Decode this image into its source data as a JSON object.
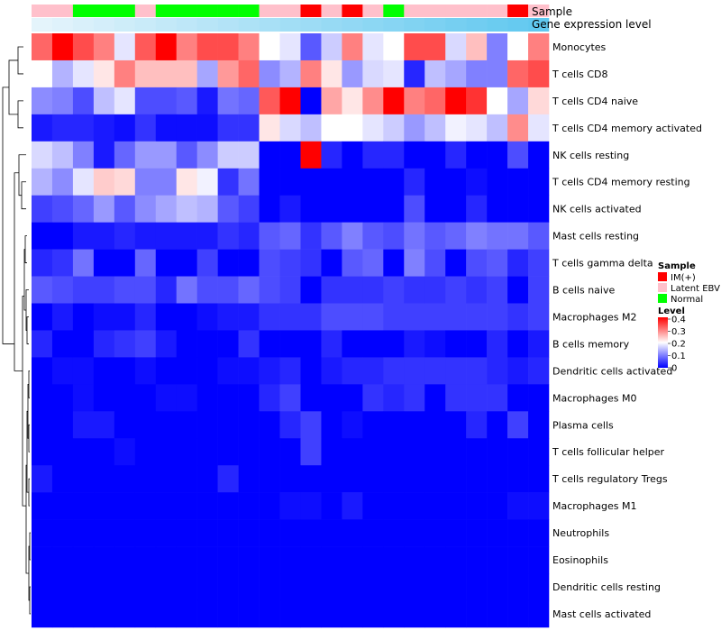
{
  "chart_data": {
    "type": "heatmap",
    "annotation_labels": {
      "sample": "Sample",
      "gene": "Gene expression level"
    },
    "sample_annotation": [
      "Latent EBV",
      "Latent EBV",
      "Normal",
      "Normal",
      "Normal",
      "Latent EBV",
      "Normal",
      "Normal",
      "Normal",
      "Normal",
      "Normal",
      "Latent EBV",
      "Latent EBV",
      "IM(+)",
      "Latent EBV",
      "IM(+)",
      "Latent EBV",
      "Normal",
      "Latent EBV",
      "Latent EBV",
      "Latent EBV",
      "Latent EBV",
      "Latent EBV",
      "IM(+)",
      "Latent EBV"
    ],
    "gene_expression_level": [
      0.0,
      0.04,
      0.08,
      0.12,
      0.16,
      0.2,
      0.24,
      0.28,
      0.32,
      0.36,
      0.4,
      0.44,
      0.48,
      0.52,
      0.56,
      0.6,
      0.64,
      0.68,
      0.72,
      0.76,
      0.8,
      0.84,
      0.88,
      0.92,
      0.96
    ],
    "gene_expression_colors": {
      "low": "#e4f4fb",
      "high": "#5bc6ef"
    },
    "rows": [
      {
        "label": "Monocytes",
        "values": [
          0.32,
          0.4,
          0.34,
          0.3,
          0.18,
          0.33,
          0.4,
          0.3,
          0.34,
          0.34,
          0.3,
          0.2,
          0.18,
          0.07,
          0.16,
          0.3,
          0.18,
          0.2,
          0.34,
          0.34,
          0.17,
          0.25,
          0.1,
          0.2,
          0.3
        ]
      },
      {
        "label": "T cells CD8",
        "values": [
          0.2,
          0.14,
          0.18,
          0.22,
          0.3,
          0.25,
          0.25,
          0.25,
          0.13,
          0.28,
          0.32,
          0.11,
          0.14,
          0.3,
          0.22,
          0.12,
          0.17,
          0.18,
          0.03,
          0.15,
          0.13,
          0.1,
          0.1,
          0.32,
          0.34
        ]
      },
      {
        "label": "T cells CD4 naive",
        "values": [
          0.11,
          0.1,
          0.06,
          0.15,
          0.18,
          0.06,
          0.06,
          0.07,
          0.02,
          0.09,
          0.08,
          0.33,
          0.4,
          0.0,
          0.27,
          0.22,
          0.29,
          0.4,
          0.3,
          0.32,
          0.4,
          0.36,
          0.2,
          0.13,
          0.23
        ]
      },
      {
        "label": "T cells CD4 memory activated",
        "values": [
          0.02,
          0.03,
          0.03,
          0.02,
          0.01,
          0.04,
          0.01,
          0.01,
          0.01,
          0.04,
          0.04,
          0.22,
          0.17,
          0.15,
          0.2,
          0.2,
          0.18,
          0.16,
          0.12,
          0.15,
          0.19,
          0.18,
          0.15,
          0.29,
          0.18
        ]
      },
      {
        "label": "NK cells resting",
        "values": [
          0.17,
          0.15,
          0.1,
          0.02,
          0.08,
          0.12,
          0.12,
          0.07,
          0.11,
          0.16,
          0.16,
          0.0,
          0.0,
          0.4,
          0.03,
          0.0,
          0.03,
          0.03,
          0.0,
          0.0,
          0.03,
          0.0,
          0.0,
          0.06,
          0.0
        ]
      },
      {
        "label": "T cells CD4 memory resting",
        "values": [
          0.14,
          0.11,
          0.18,
          0.24,
          0.23,
          0.1,
          0.1,
          0.22,
          0.19,
          0.04,
          0.09,
          0.0,
          0.0,
          0.0,
          0.0,
          0.0,
          0.0,
          0.0,
          0.03,
          0.0,
          0.0,
          0.01,
          0.0,
          0.0,
          0.0
        ]
      },
      {
        "label": "NK cells activated",
        "values": [
          0.05,
          0.06,
          0.08,
          0.12,
          0.07,
          0.11,
          0.13,
          0.15,
          0.14,
          0.07,
          0.05,
          0.0,
          0.02,
          0.0,
          0.0,
          0.0,
          0.0,
          0.0,
          0.06,
          0.0,
          0.0,
          0.03,
          0.0,
          0.0,
          0.0
        ]
      },
      {
        "label": "Mast cells resting",
        "values": [
          0.0,
          0.0,
          0.02,
          0.02,
          0.03,
          0.02,
          0.02,
          0.02,
          0.02,
          0.04,
          0.03,
          0.07,
          0.08,
          0.04,
          0.07,
          0.1,
          0.07,
          0.06,
          0.09,
          0.07,
          0.08,
          0.1,
          0.09,
          0.09,
          0.07
        ]
      },
      {
        "label": "T cells gamma delta",
        "values": [
          0.03,
          0.04,
          0.09,
          0.0,
          0.0,
          0.08,
          0.0,
          0.0,
          0.05,
          0.0,
          0.0,
          0.06,
          0.05,
          0.04,
          0.0,
          0.07,
          0.08,
          0.0,
          0.1,
          0.06,
          0.0,
          0.06,
          0.07,
          0.03,
          0.05
        ]
      },
      {
        "label": "B cells naive",
        "values": [
          0.07,
          0.06,
          0.05,
          0.05,
          0.06,
          0.06,
          0.03,
          0.09,
          0.06,
          0.06,
          0.08,
          0.06,
          0.05,
          0.0,
          0.04,
          0.04,
          0.04,
          0.05,
          0.04,
          0.04,
          0.05,
          0.04,
          0.05,
          0.0,
          0.05
        ]
      },
      {
        "label": "Macrophages M2",
        "values": [
          0.0,
          0.02,
          0.0,
          0.01,
          0.01,
          0.03,
          0.0,
          0.0,
          0.01,
          0.02,
          0.02,
          0.04,
          0.04,
          0.04,
          0.06,
          0.06,
          0.06,
          0.05,
          0.05,
          0.05,
          0.05,
          0.05,
          0.05,
          0.04,
          0.05
        ]
      },
      {
        "label": "B cells memory",
        "values": [
          0.03,
          0.0,
          0.0,
          0.03,
          0.04,
          0.05,
          0.02,
          0.0,
          0.0,
          0.0,
          0.04,
          0.0,
          0.0,
          0.0,
          0.03,
          0.0,
          0.0,
          0.0,
          0.02,
          0.01,
          0.0,
          0.0,
          0.03,
          0.0,
          0.02
        ]
      },
      {
        "label": "Dendritic cells activated",
        "values": [
          0.0,
          0.01,
          0.01,
          0.0,
          0.0,
          0.01,
          0.0,
          0.0,
          0.0,
          0.01,
          0.01,
          0.02,
          0.03,
          0.0,
          0.02,
          0.03,
          0.03,
          0.04,
          0.04,
          0.04,
          0.04,
          0.04,
          0.03,
          0.02,
          0.03
        ]
      },
      {
        "label": "Macrophages M0",
        "values": [
          0.0,
          0.0,
          0.01,
          0.0,
          0.0,
          0.0,
          0.01,
          0.01,
          0.0,
          0.0,
          0.0,
          0.03,
          0.05,
          0.0,
          0.0,
          0.0,
          0.04,
          0.03,
          0.04,
          0.0,
          0.04,
          0.04,
          0.04,
          0.0,
          0.0
        ]
      },
      {
        "label": "Plasma cells",
        "values": [
          0.0,
          0.0,
          0.02,
          0.02,
          0.0,
          0.0,
          0.0,
          0.0,
          0.0,
          0.0,
          0.0,
          0.0,
          0.03,
          0.05,
          0.0,
          0.01,
          0.0,
          0.0,
          0.0,
          0.0,
          0.0,
          0.03,
          0.0,
          0.05,
          0.0
        ]
      },
      {
        "label": "T cells follicular helper",
        "values": [
          0.0,
          0.0,
          0.0,
          0.0,
          0.01,
          0.0,
          0.0,
          0.0,
          0.0,
          0.0,
          0.0,
          0.0,
          0.0,
          0.05,
          0.0,
          0.0,
          0.0,
          0.0,
          0.0,
          0.0,
          0.0,
          0.0,
          0.0,
          0.0,
          0.0
        ]
      },
      {
        "label": "T cells regulatory  Tregs",
        "values": [
          0.02,
          0.0,
          0.0,
          0.0,
          0.0,
          0.0,
          0.0,
          0.0,
          0.0,
          0.03,
          0.0,
          0.0,
          0.0,
          0.0,
          0.0,
          0.0,
          0.0,
          0.0,
          0.0,
          0.0,
          0.0,
          0.0,
          0.0,
          0.0,
          0.0
        ]
      },
      {
        "label": "Macrophages M1",
        "values": [
          0.0,
          0.0,
          0.0,
          0.0,
          0.0,
          0.0,
          0.0,
          0.0,
          0.0,
          0.0,
          0.0,
          0.0,
          0.01,
          0.01,
          0.0,
          0.02,
          0.0,
          0.0,
          0.0,
          0.0,
          0.0,
          0.0,
          0.0,
          0.01,
          0.01
        ]
      },
      {
        "label": "Neutrophils",
        "values": [
          0,
          0,
          0,
          0,
          0,
          0,
          0,
          0,
          0,
          0,
          0,
          0,
          0,
          0,
          0,
          0,
          0,
          0,
          0,
          0,
          0,
          0,
          0,
          0,
          0
        ]
      },
      {
        "label": "Eosinophils",
        "values": [
          0,
          0,
          0,
          0,
          0,
          0,
          0,
          0,
          0,
          0,
          0,
          0,
          0,
          0,
          0,
          0,
          0,
          0,
          0,
          0,
          0,
          0,
          0,
          0,
          0
        ]
      },
      {
        "label": "Dendritic cells resting",
        "values": [
          0,
          0,
          0,
          0,
          0,
          0,
          0,
          0,
          0,
          0,
          0,
          0,
          0,
          0,
          0,
          0,
          0,
          0,
          0,
          0,
          0,
          0,
          0,
          0,
          0
        ]
      },
      {
        "label": "Mast cells activated",
        "values": [
          0,
          0,
          0,
          0,
          0,
          0,
          0,
          0,
          0,
          0,
          0,
          0,
          0,
          0,
          0,
          0,
          0,
          0,
          0,
          0,
          0,
          0,
          0,
          0,
          0
        ]
      }
    ],
    "color_scale": {
      "min": 0,
      "mid": 0.2,
      "max": 0.4,
      "low": "#0000ff",
      "mid_color": "#ffffff",
      "high": "#ff0000"
    },
    "legend_sample": {
      "title": "Sample",
      "entries": [
        {
          "label": "IM(+)",
          "color": "#ff0000"
        },
        {
          "label": "Latent EBV",
          "color": "#ffc0cb"
        },
        {
          "label": "Normal",
          "color": "#00ff00"
        }
      ]
    },
    "legend_level": {
      "title": "Level",
      "ticks": [
        "0.4",
        "0.3",
        "0.2",
        "0.1",
        "0"
      ]
    },
    "dendrogram_side": "left",
    "legend_placement": "right"
  }
}
